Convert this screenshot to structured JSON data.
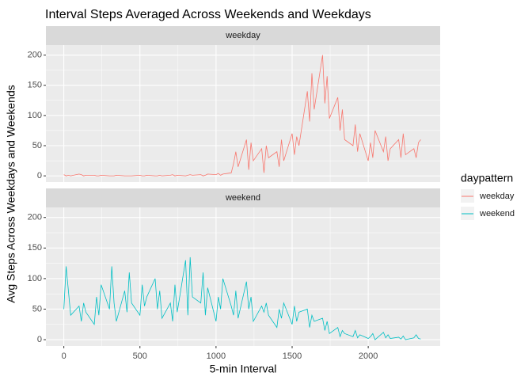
{
  "chart_data": {
    "type": "line",
    "title": "Interval Steps Averaged Across Weekends and Weekdays",
    "xlabel": "5-min Interval",
    "ylabel": "Avg Steps Across Weekdays and Weekends",
    "legend_title": "daypattern",
    "facet_by_series": true,
    "grid": true,
    "legend": "right",
    "x": [
      0,
      15,
      30,
      45,
      100,
      115,
      130,
      145,
      200,
      215,
      230,
      245,
      300,
      315,
      330,
      345,
      400,
      415,
      430,
      445,
      500,
      515,
      530,
      545,
      600,
      615,
      630,
      645,
      700,
      715,
      730,
      745,
      800,
      815,
      830,
      845,
      900,
      915,
      930,
      945,
      1000,
      1015,
      1030,
      1045,
      1100,
      1115,
      1130,
      1145,
      1200,
      1215,
      1230,
      1245,
      1300,
      1315,
      1330,
      1345,
      1400,
      1415,
      1430,
      1445,
      1500,
      1515,
      1530,
      1545,
      1600,
      1615,
      1630,
      1645,
      1700,
      1715,
      1730,
      1745,
      1800,
      1815,
      1830,
      1845,
      1900,
      1915,
      1930,
      1945,
      2000,
      2015,
      2030,
      2045,
      2100,
      2115,
      2130,
      2145,
      2200,
      2215,
      2230,
      2245,
      2300,
      2315,
      2330,
      2345
    ],
    "xlim": [
      -117.75,
      2472.75
    ],
    "xticks": [
      0,
      500,
      1000,
      1500,
      2000
    ],
    "ylim": [
      -10.3,
      216.5
    ],
    "yticks": [
      0,
      50,
      100,
      150,
      200
    ],
    "series": [
      {
        "name": "weekday",
        "color": "#F8766D",
        "values": [
          2,
          0,
          1,
          0,
          3,
          2,
          0,
          1,
          1,
          0,
          0,
          1,
          0,
          0,
          0,
          1,
          0,
          0,
          0,
          0,
          1,
          0,
          0,
          1,
          0,
          0,
          1,
          0,
          1,
          2,
          0,
          1,
          0,
          1,
          2,
          1,
          2,
          0,
          1,
          3,
          2,
          4,
          1,
          3,
          5,
          20,
          40,
          15,
          60,
          10,
          55,
          25,
          45,
          5,
          50,
          30,
          40,
          15,
          60,
          25,
          70,
          35,
          65,
          50,
          140,
          90,
          170,
          110,
          200,
          120,
          165,
          95,
          130,
          75,
          110,
          60,
          50,
          85,
          40,
          70,
          25,
          55,
          30,
          75,
          40,
          65,
          25,
          45,
          60,
          30,
          70,
          35,
          45,
          30,
          55,
          60
        ]
      },
      {
        "name": "weekend",
        "color": "#00BFC4",
        "values": [
          50,
          120,
          80,
          40,
          55,
          30,
          60,
          45,
          25,
          70,
          40,
          90,
          50,
          120,
          60,
          30,
          80,
          45,
          110,
          60,
          40,
          90,
          55,
          70,
          100,
          50,
          80,
          35,
          60,
          30,
          90,
          45,
          130,
          40,
          135,
          70,
          60,
          110,
          40,
          85,
          30,
          70,
          50,
          100,
          55,
          40,
          80,
          35,
          95,
          50,
          70,
          30,
          55,
          45,
          60,
          40,
          20,
          50,
          35,
          60,
          25,
          55,
          30,
          45,
          50,
          20,
          40,
          30,
          35,
          15,
          30,
          10,
          20,
          5,
          15,
          10,
          5,
          15,
          3,
          8,
          2,
          5,
          10,
          0,
          12,
          3,
          8,
          2,
          4,
          1,
          6,
          0,
          3,
          8,
          2,
          1
        ]
      }
    ]
  }
}
